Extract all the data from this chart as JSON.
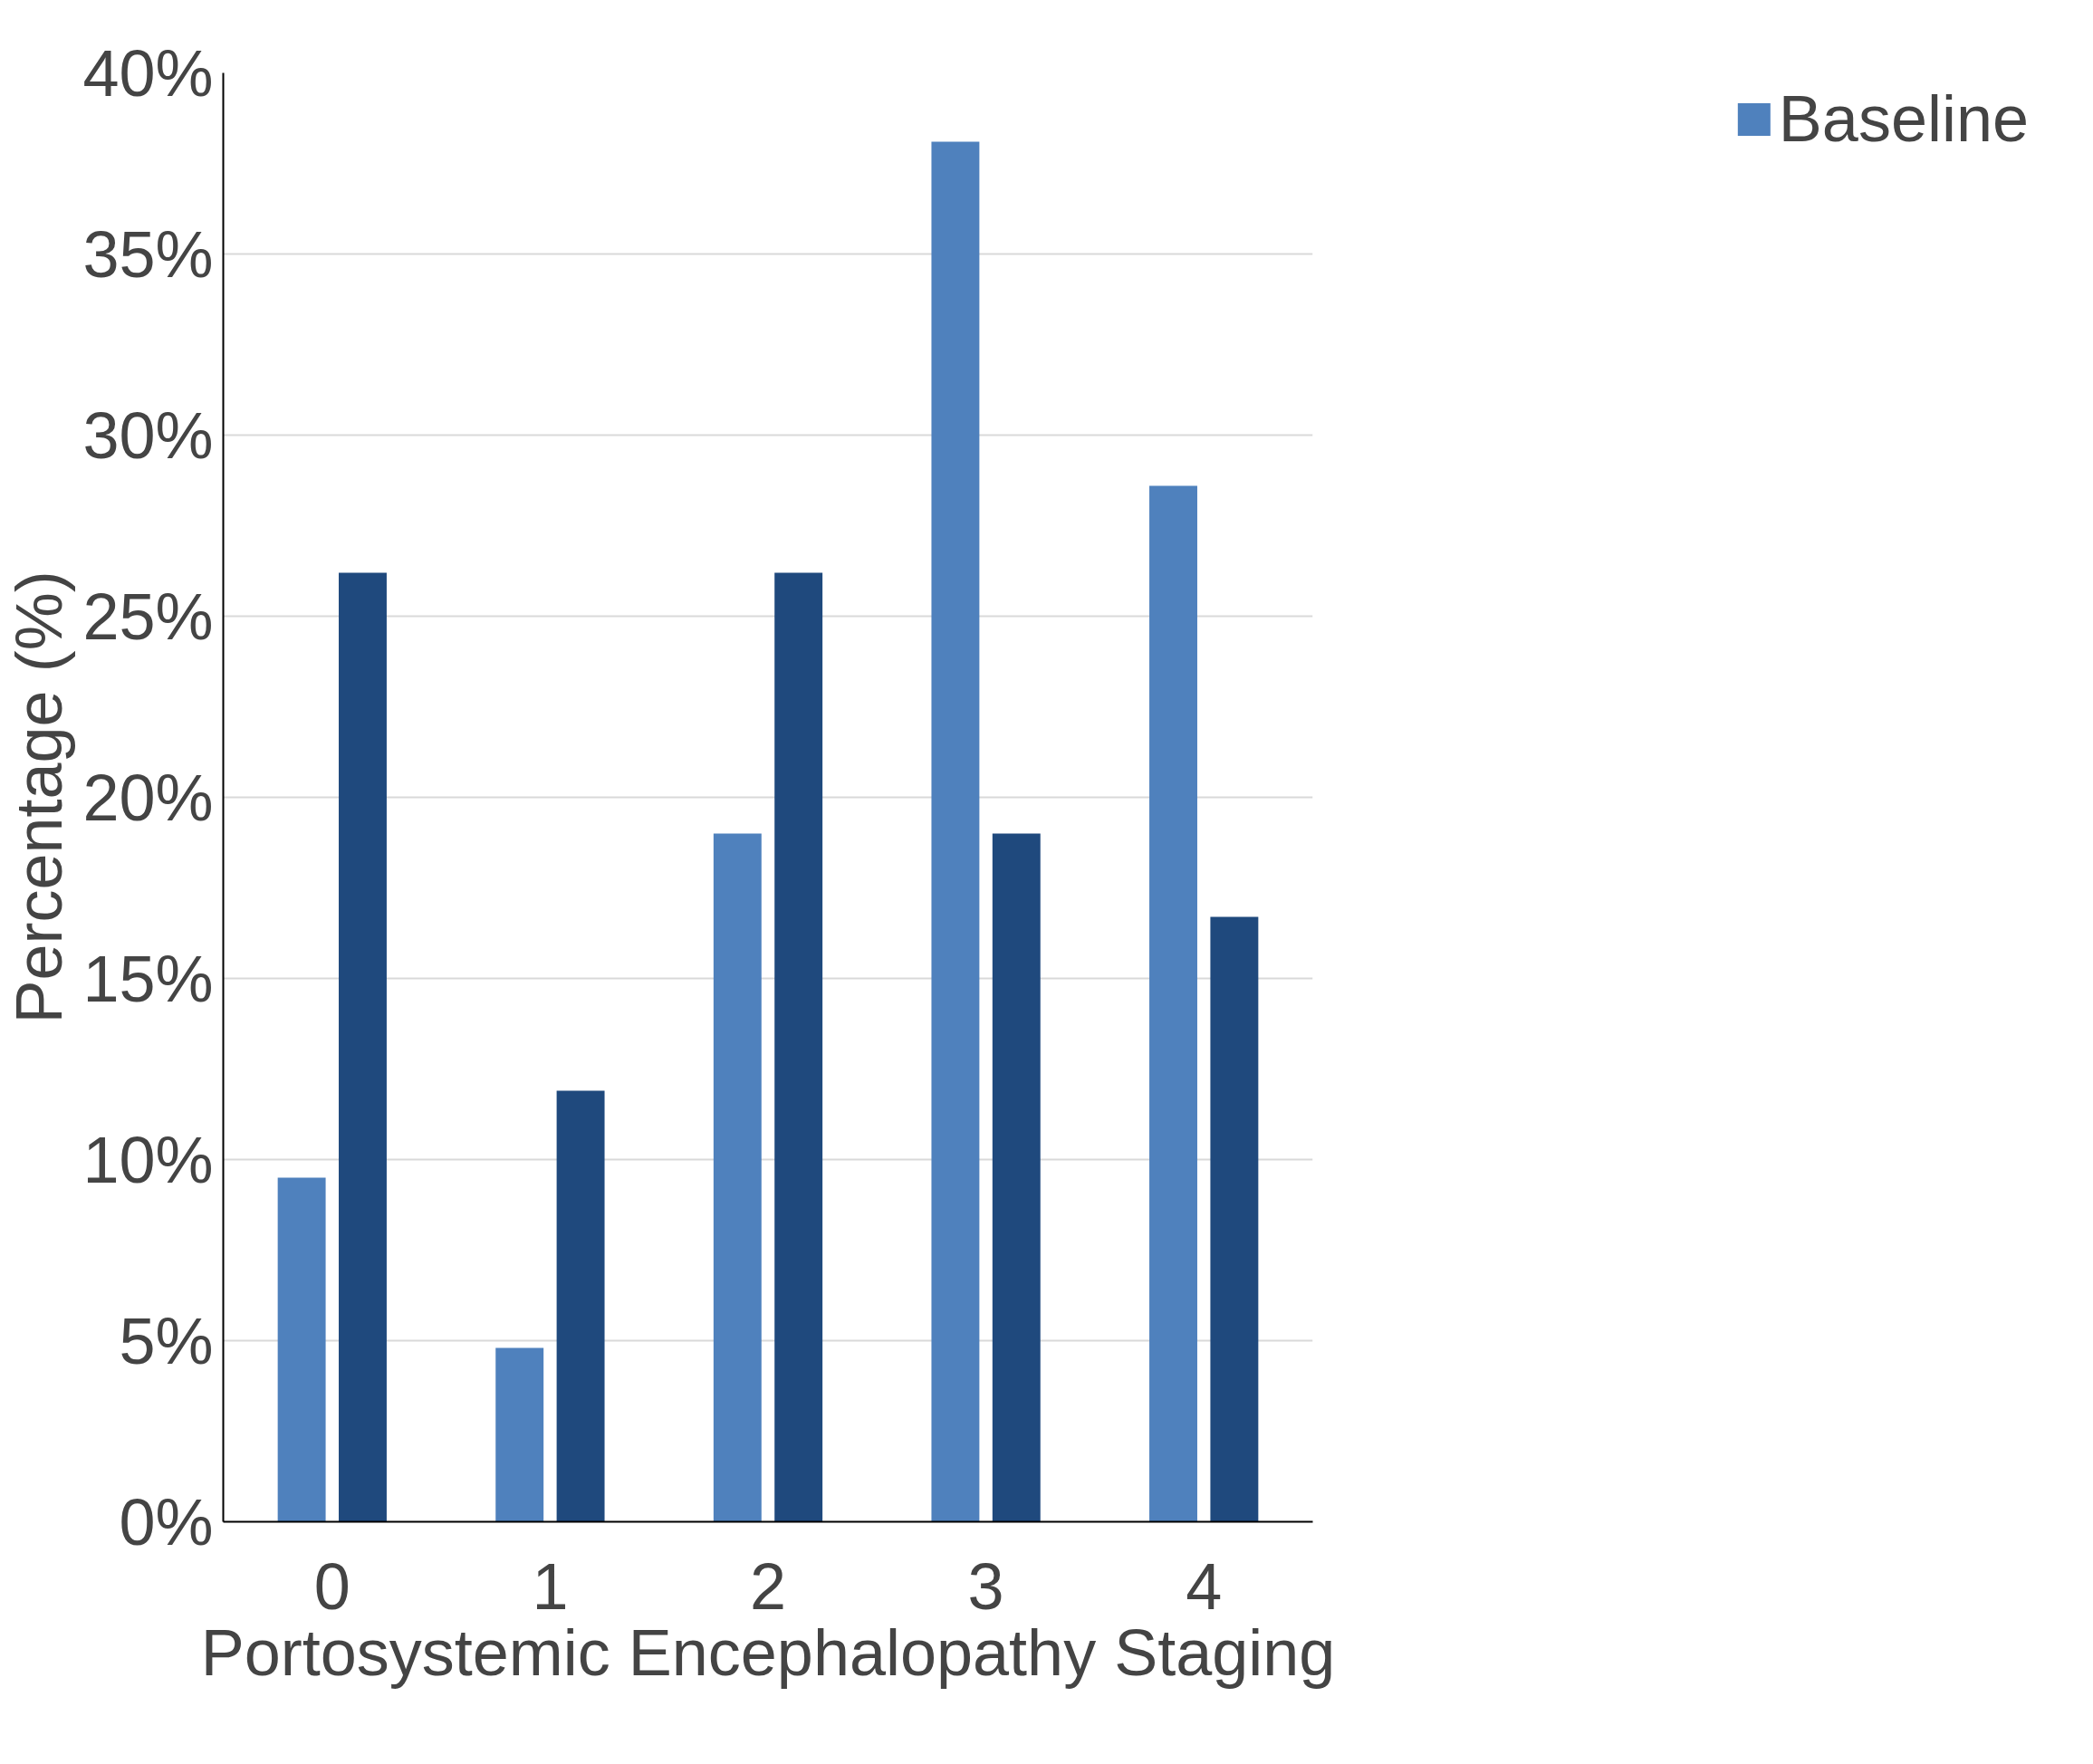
{
  "chart_data": {
    "type": "bar",
    "xlabel": "Portosystemic Encephalopathy Staging",
    "ylabel": "Percentage (%)",
    "categories": [
      "0",
      "1",
      "2",
      "3",
      "4"
    ],
    "series": [
      {
        "name": "Baseline",
        "color": "#4f81bd",
        "values": [
          9.5,
          4.8,
          19.0,
          38.1,
          28.6
        ]
      },
      {
        "color": "#1f497d",
        "values": [
          26.2,
          11.9,
          26.2,
          19.0,
          16.7
        ]
      }
    ],
    "ylim": [
      0,
      40
    ],
    "yticks": [
      {
        "value": 0,
        "label": "0%"
      },
      {
        "value": 5,
        "label": "5%"
      },
      {
        "value": 10,
        "label": "10%"
      },
      {
        "value": 15,
        "label": "15%"
      },
      {
        "value": 20,
        "label": "20%"
      },
      {
        "value": 25,
        "label": "25%"
      },
      {
        "value": 30,
        "label": "30%"
      },
      {
        "value": 35,
        "label": "35%"
      },
      {
        "value": 40,
        "label": "40%"
      }
    ],
    "grid": "y",
    "legend": "right"
  }
}
